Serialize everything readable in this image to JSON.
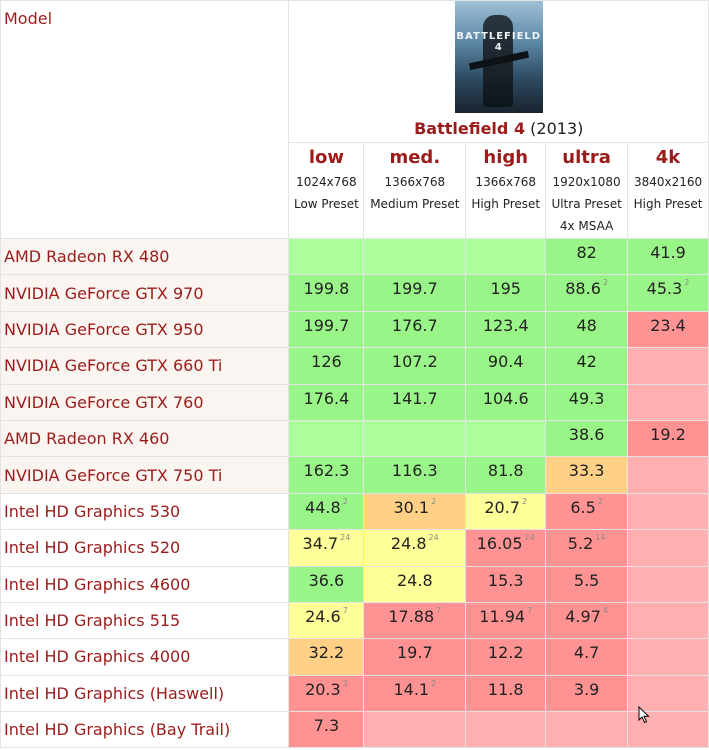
{
  "header": {
    "model_label": "Model",
    "game_title": "Battlefield 4",
    "game_year": "(2013)",
    "cover_text": "BATTLEFIELD 4"
  },
  "presets": [
    {
      "name": "low",
      "resolution": "1024x768",
      "setting": "Low Preset",
      "extra": ""
    },
    {
      "name": "med.",
      "resolution": "1366x768",
      "setting": "Medium Preset",
      "extra": ""
    },
    {
      "name": "high",
      "resolution": "1366x768",
      "setting": "High Preset",
      "extra": ""
    },
    {
      "name": "ultra",
      "resolution": "1920x1080",
      "setting": "Ultra Preset",
      "extra": "4x MSAA"
    },
    {
      "name": "4k",
      "resolution": "3840x2160",
      "setting": "High Preset",
      "extra": ""
    }
  ],
  "colors": {
    "green": "#99f587",
    "light_green": "#abff9d",
    "yellow": "#ffff99",
    "orange": "#ffd085",
    "red": "#ff9292",
    "light_red": "#ffafaf",
    "link_red": "#9b1b1b"
  },
  "rows": [
    {
      "name": "AMD Radeon RX 480",
      "type": "dgpu",
      "cells": [
        {
          "v": "",
          "s": "",
          "c": "lg"
        },
        {
          "v": "",
          "s": "",
          "c": "lg"
        },
        {
          "v": "",
          "s": "",
          "c": "lg"
        },
        {
          "v": "82",
          "s": "",
          "c": "g"
        },
        {
          "v": "41.9",
          "s": "",
          "c": "g"
        }
      ]
    },
    {
      "name": "NVIDIA GeForce GTX 970",
      "type": "dgpu",
      "cells": [
        {
          "v": "199.8",
          "s": "",
          "c": "g"
        },
        {
          "v": "199.7",
          "s": "",
          "c": "g"
        },
        {
          "v": "195",
          "s": "",
          "c": "g"
        },
        {
          "v": "88.6",
          "s": "2",
          "c": "g"
        },
        {
          "v": "45.3",
          "s": "2",
          "c": "g"
        }
      ]
    },
    {
      "name": "NVIDIA GeForce GTX 950",
      "type": "dgpu",
      "cells": [
        {
          "v": "199.7",
          "s": "",
          "c": "g"
        },
        {
          "v": "176.7",
          "s": "",
          "c": "g"
        },
        {
          "v": "123.4",
          "s": "",
          "c": "g"
        },
        {
          "v": "48",
          "s": "",
          "c": "g"
        },
        {
          "v": "23.4",
          "s": "",
          "c": "r"
        }
      ]
    },
    {
      "name": "NVIDIA GeForce GTX 660 Ti",
      "type": "dgpu",
      "cells": [
        {
          "v": "126",
          "s": "",
          "c": "g"
        },
        {
          "v": "107.2",
          "s": "",
          "c": "g"
        },
        {
          "v": "90.4",
          "s": "",
          "c": "g"
        },
        {
          "v": "42",
          "s": "",
          "c": "g"
        },
        {
          "v": "",
          "s": "",
          "c": "lr"
        }
      ]
    },
    {
      "name": "NVIDIA GeForce GTX 760",
      "type": "dgpu",
      "cells": [
        {
          "v": "176.4",
          "s": "",
          "c": "g"
        },
        {
          "v": "141.7",
          "s": "",
          "c": "g"
        },
        {
          "v": "104.6",
          "s": "",
          "c": "g"
        },
        {
          "v": "49.3",
          "s": "",
          "c": "g"
        },
        {
          "v": "",
          "s": "",
          "c": "lr"
        }
      ]
    },
    {
      "name": "AMD Radeon RX 460",
      "type": "dgpu",
      "cells": [
        {
          "v": "",
          "s": "",
          "c": "lg"
        },
        {
          "v": "",
          "s": "",
          "c": "lg"
        },
        {
          "v": "",
          "s": "",
          "c": "lg"
        },
        {
          "v": "38.6",
          "s": "",
          "c": "g"
        },
        {
          "v": "19.2",
          "s": "",
          "c": "r"
        }
      ]
    },
    {
      "name": "NVIDIA GeForce GTX 750 Ti",
      "type": "dgpu",
      "cells": [
        {
          "v": "162.3",
          "s": "",
          "c": "g"
        },
        {
          "v": "116.3",
          "s": "",
          "c": "g"
        },
        {
          "v": "81.8",
          "s": "",
          "c": "g"
        },
        {
          "v": "33.3",
          "s": "",
          "c": "o"
        },
        {
          "v": "",
          "s": "",
          "c": "lr"
        }
      ]
    },
    {
      "name": "Intel HD Graphics 530",
      "type": "igpu",
      "cells": [
        {
          "v": "44.8",
          "s": "2",
          "c": "g"
        },
        {
          "v": "30.1",
          "s": "2",
          "c": "o"
        },
        {
          "v": "20.7",
          "s": "2",
          "c": "y"
        },
        {
          "v": "6.5",
          "s": "2",
          "c": "r"
        },
        {
          "v": "",
          "s": "",
          "c": "lr"
        }
      ]
    },
    {
      "name": "Intel HD Graphics 520",
      "type": "igpu",
      "cells": [
        {
          "v": "34.7",
          "s": "24",
          "c": "y"
        },
        {
          "v": "24.8",
          "s": "24",
          "c": "y"
        },
        {
          "v": "16.05",
          "s": "24",
          "c": "r"
        },
        {
          "v": "5.2",
          "s": "14",
          "c": "r"
        },
        {
          "v": "",
          "s": "",
          "c": "lr"
        }
      ]
    },
    {
      "name": "Intel HD Graphics 4600",
      "type": "igpu",
      "cells": [
        {
          "v": "36.6",
          "s": "",
          "c": "g"
        },
        {
          "v": "24.8",
          "s": "",
          "c": "y"
        },
        {
          "v": "15.3",
          "s": "",
          "c": "r"
        },
        {
          "v": "5.5",
          "s": "",
          "c": "r"
        },
        {
          "v": "",
          "s": "",
          "c": "lr"
        }
      ]
    },
    {
      "name": "Intel HD Graphics 515",
      "type": "igpu",
      "cells": [
        {
          "v": "24.6",
          "s": "7",
          "c": "y"
        },
        {
          "v": "17.88",
          "s": "7",
          "c": "r"
        },
        {
          "v": "11.94",
          "s": "7",
          "c": "r"
        },
        {
          "v": "4.97",
          "s": "4",
          "c": "r"
        },
        {
          "v": "",
          "s": "",
          "c": "lr"
        }
      ]
    },
    {
      "name": "Intel HD Graphics 4000",
      "type": "igpu",
      "cells": [
        {
          "v": "32.2",
          "s": "",
          "c": "o"
        },
        {
          "v": "19.7",
          "s": "",
          "c": "r"
        },
        {
          "v": "12.2",
          "s": "",
          "c": "r"
        },
        {
          "v": "4.7",
          "s": "",
          "c": "r"
        },
        {
          "v": "",
          "s": "",
          "c": "lr"
        }
      ]
    },
    {
      "name": "Intel HD Graphics (Haswell)",
      "type": "igpu",
      "cells": [
        {
          "v": "20.3",
          "s": "3",
          "c": "r"
        },
        {
          "v": "14.1",
          "s": "2",
          "c": "r"
        },
        {
          "v": "11.8",
          "s": "",
          "c": "r"
        },
        {
          "v": "3.9",
          "s": "",
          "c": "r"
        },
        {
          "v": "",
          "s": "",
          "c": "lr"
        }
      ]
    },
    {
      "name": "Intel HD Graphics (Bay Trail)",
      "type": "igpu",
      "cells": [
        {
          "v": "7.3",
          "s": "",
          "c": "r"
        },
        {
          "v": "",
          "s": "",
          "c": "lr"
        },
        {
          "v": "",
          "s": "",
          "c": "lr"
        },
        {
          "v": "",
          "s": "",
          "c": "lr"
        },
        {
          "v": "",
          "s": "",
          "c": "lr"
        }
      ]
    }
  ]
}
